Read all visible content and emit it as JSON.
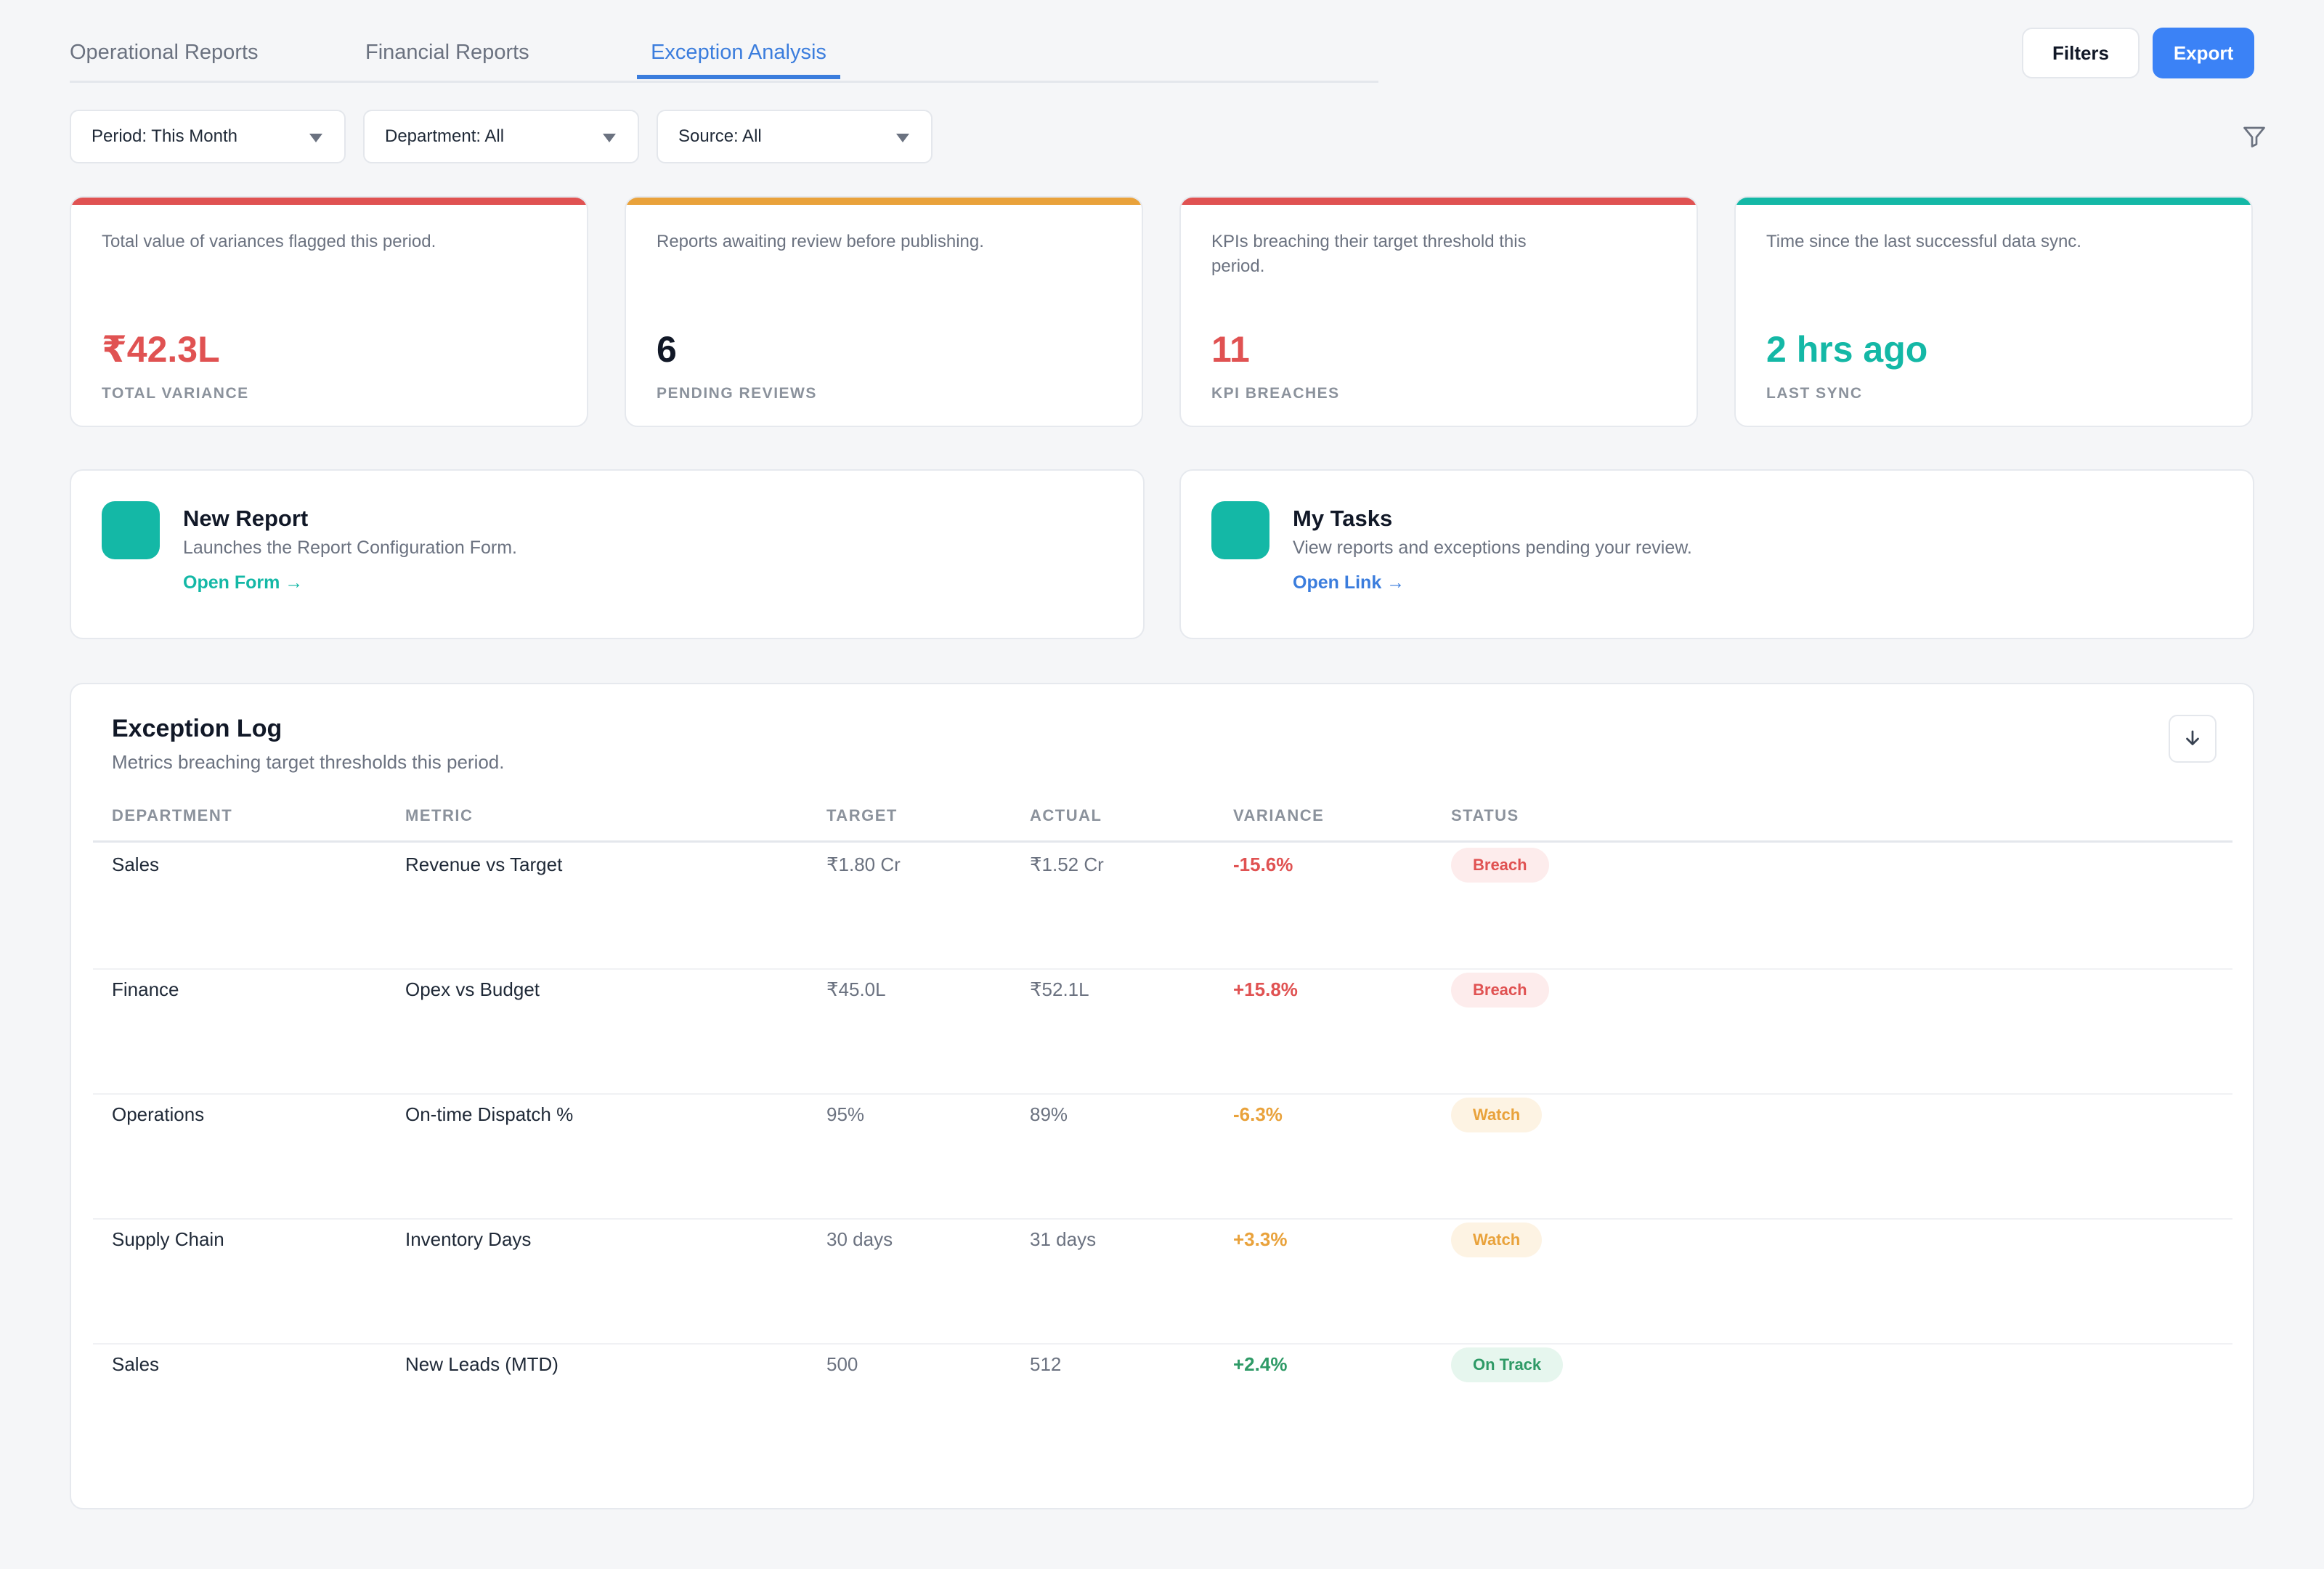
{
  "tabs": [
    {
      "label": "Operational Reports"
    },
    {
      "label": "Financial Reports"
    },
    {
      "label": "Exception Analysis",
      "active": true
    }
  ],
  "header": {
    "filters_label": "Filters",
    "export_label": "Export"
  },
  "filters": [
    {
      "label": "Period: This Month"
    },
    {
      "label": "Department: All"
    },
    {
      "label": "Source: All"
    }
  ],
  "kpis": [
    {
      "description": "Total value of variances flagged this period.",
      "value": "₹42.3L",
      "label": "TOTAL VARIANCE",
      "accent": "#e05252"
    },
    {
      "description": "Reports awaiting review before publishing.",
      "value": "6",
      "label": "PENDING REVIEWS",
      "accent": "#e9a23b"
    },
    {
      "description": "KPIs breaching their target threshold this period.",
      "value": "11",
      "label": "KPI BREACHES",
      "accent": "#e05252"
    },
    {
      "description": "Time since the last successful data sync.",
      "value": "2 hrs ago",
      "label": "LAST SYNC",
      "accent": "#14b8a6"
    }
  ],
  "actions": [
    {
      "title": "New Report",
      "subtitle": "Launches the Report Configuration Form.",
      "link": "Open Form →"
    },
    {
      "title": "My Tasks",
      "subtitle": "View reports and exceptions pending your review.",
      "link": "Open Link →"
    }
  ],
  "log": {
    "title": "Exception Log",
    "subtitle": "Metrics breaching target thresholds this period.",
    "columns": [
      "DEPARTMENT",
      "METRIC",
      "TARGET",
      "ACTUAL",
      "VARIANCE",
      "STATUS"
    ],
    "rows": [
      {
        "department": "Sales",
        "metric": "Revenue vs Target",
        "target": "₹1.80 Cr",
        "actual": "₹1.52 Cr",
        "variance": "-15.6%",
        "status": "Breach"
      },
      {
        "department": "Finance",
        "metric": "Opex vs Budget",
        "target": "₹45.0L",
        "actual": "₹52.1L",
        "variance": "+15.8%",
        "status": "Breach"
      },
      {
        "department": "Operations",
        "metric": "On-time Dispatch %",
        "target": "95%",
        "actual": "89%",
        "variance": "-6.3%",
        "status": "Watch"
      },
      {
        "department": "Supply Chain",
        "metric": "Inventory Days",
        "target": "30 days",
        "actual": "31 days",
        "variance": "+3.3%",
        "status": "Watch"
      },
      {
        "department": "Sales",
        "metric": "New Leads (MTD)",
        "target": "500",
        "actual": "512",
        "variance": "+2.4%",
        "status": "On Track"
      }
    ]
  },
  "colors": {
    "accent": "#3b82f6",
    "teal": "#14b8a6",
    "breach": "#e05252",
    "watch": "#e9a23b",
    "on_track": "#2e9a66"
  },
  "icons": {
    "filter": "funnel-icon",
    "download": "download-icon",
    "select": "caret-down-icon"
  }
}
